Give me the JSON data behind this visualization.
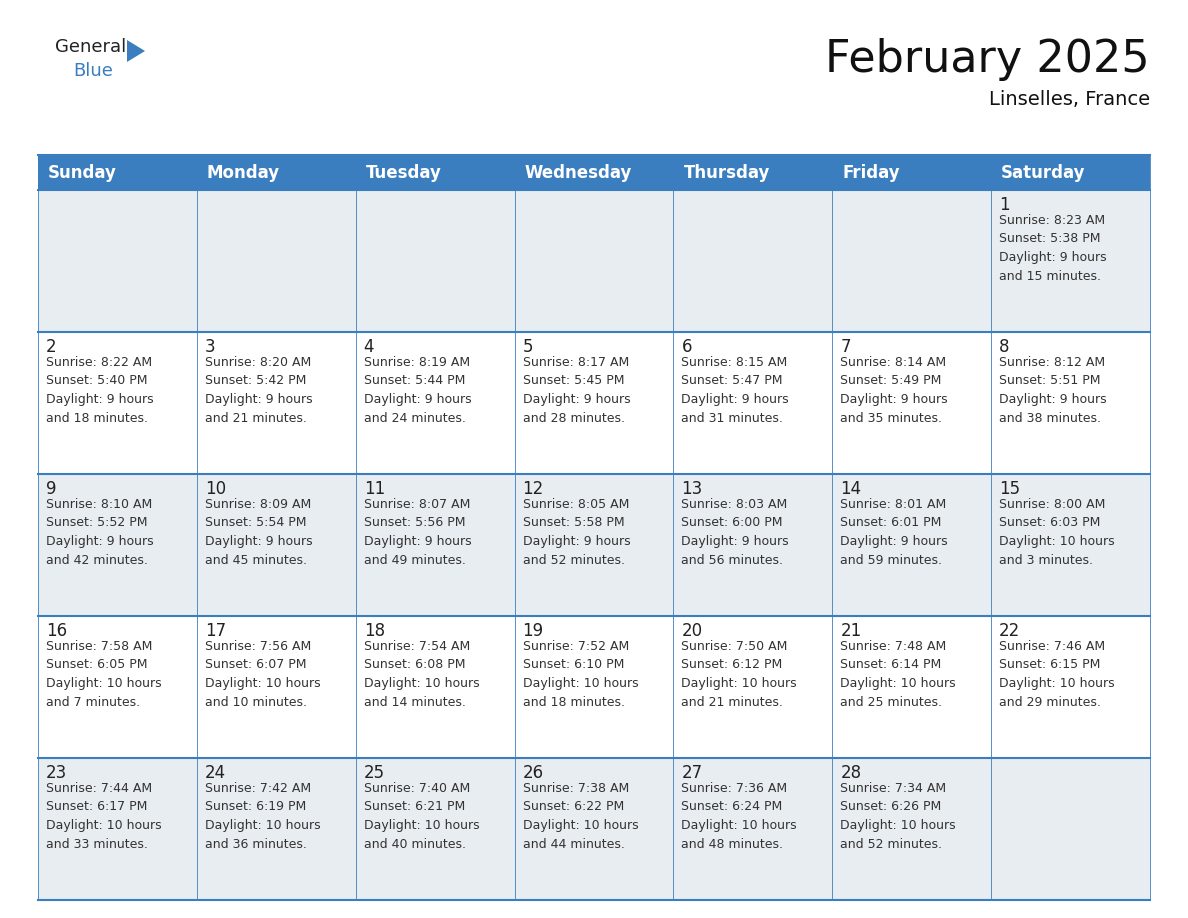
{
  "title": "February 2025",
  "subtitle": "Linselles, France",
  "header_bg": "#3a7ebf",
  "header_text_color": "#ffffff",
  "cell_bg_row0": "#e8edf2",
  "cell_bg_row1": "#ffffff",
  "cell_bg_row2": "#e8edf2",
  "cell_bg_row3": "#ffffff",
  "cell_bg_row4": "#e8edf2",
  "border_color": "#3a7ebf",
  "day_headers": [
    "Sunday",
    "Monday",
    "Tuesday",
    "Wednesday",
    "Thursday",
    "Friday",
    "Saturday"
  ],
  "weeks": [
    [
      {
        "day": null,
        "info": null
      },
      {
        "day": null,
        "info": null
      },
      {
        "day": null,
        "info": null
      },
      {
        "day": null,
        "info": null
      },
      {
        "day": null,
        "info": null
      },
      {
        "day": null,
        "info": null
      },
      {
        "day": 1,
        "info": "Sunrise: 8:23 AM\nSunset: 5:38 PM\nDaylight: 9 hours\nand 15 minutes."
      }
    ],
    [
      {
        "day": 2,
        "info": "Sunrise: 8:22 AM\nSunset: 5:40 PM\nDaylight: 9 hours\nand 18 minutes."
      },
      {
        "day": 3,
        "info": "Sunrise: 8:20 AM\nSunset: 5:42 PM\nDaylight: 9 hours\nand 21 minutes."
      },
      {
        "day": 4,
        "info": "Sunrise: 8:19 AM\nSunset: 5:44 PM\nDaylight: 9 hours\nand 24 minutes."
      },
      {
        "day": 5,
        "info": "Sunrise: 8:17 AM\nSunset: 5:45 PM\nDaylight: 9 hours\nand 28 minutes."
      },
      {
        "day": 6,
        "info": "Sunrise: 8:15 AM\nSunset: 5:47 PM\nDaylight: 9 hours\nand 31 minutes."
      },
      {
        "day": 7,
        "info": "Sunrise: 8:14 AM\nSunset: 5:49 PM\nDaylight: 9 hours\nand 35 minutes."
      },
      {
        "day": 8,
        "info": "Sunrise: 8:12 AM\nSunset: 5:51 PM\nDaylight: 9 hours\nand 38 minutes."
      }
    ],
    [
      {
        "day": 9,
        "info": "Sunrise: 8:10 AM\nSunset: 5:52 PM\nDaylight: 9 hours\nand 42 minutes."
      },
      {
        "day": 10,
        "info": "Sunrise: 8:09 AM\nSunset: 5:54 PM\nDaylight: 9 hours\nand 45 minutes."
      },
      {
        "day": 11,
        "info": "Sunrise: 8:07 AM\nSunset: 5:56 PM\nDaylight: 9 hours\nand 49 minutes."
      },
      {
        "day": 12,
        "info": "Sunrise: 8:05 AM\nSunset: 5:58 PM\nDaylight: 9 hours\nand 52 minutes."
      },
      {
        "day": 13,
        "info": "Sunrise: 8:03 AM\nSunset: 6:00 PM\nDaylight: 9 hours\nand 56 minutes."
      },
      {
        "day": 14,
        "info": "Sunrise: 8:01 AM\nSunset: 6:01 PM\nDaylight: 9 hours\nand 59 minutes."
      },
      {
        "day": 15,
        "info": "Sunrise: 8:00 AM\nSunset: 6:03 PM\nDaylight: 10 hours\nand 3 minutes."
      }
    ],
    [
      {
        "day": 16,
        "info": "Sunrise: 7:58 AM\nSunset: 6:05 PM\nDaylight: 10 hours\nand 7 minutes."
      },
      {
        "day": 17,
        "info": "Sunrise: 7:56 AM\nSunset: 6:07 PM\nDaylight: 10 hours\nand 10 minutes."
      },
      {
        "day": 18,
        "info": "Sunrise: 7:54 AM\nSunset: 6:08 PM\nDaylight: 10 hours\nand 14 minutes."
      },
      {
        "day": 19,
        "info": "Sunrise: 7:52 AM\nSunset: 6:10 PM\nDaylight: 10 hours\nand 18 minutes."
      },
      {
        "day": 20,
        "info": "Sunrise: 7:50 AM\nSunset: 6:12 PM\nDaylight: 10 hours\nand 21 minutes."
      },
      {
        "day": 21,
        "info": "Sunrise: 7:48 AM\nSunset: 6:14 PM\nDaylight: 10 hours\nand 25 minutes."
      },
      {
        "day": 22,
        "info": "Sunrise: 7:46 AM\nSunset: 6:15 PM\nDaylight: 10 hours\nand 29 minutes."
      }
    ],
    [
      {
        "day": 23,
        "info": "Sunrise: 7:44 AM\nSunset: 6:17 PM\nDaylight: 10 hours\nand 33 minutes."
      },
      {
        "day": 24,
        "info": "Sunrise: 7:42 AM\nSunset: 6:19 PM\nDaylight: 10 hours\nand 36 minutes."
      },
      {
        "day": 25,
        "info": "Sunrise: 7:40 AM\nSunset: 6:21 PM\nDaylight: 10 hours\nand 40 minutes."
      },
      {
        "day": 26,
        "info": "Sunrise: 7:38 AM\nSunset: 6:22 PM\nDaylight: 10 hours\nand 44 minutes."
      },
      {
        "day": 27,
        "info": "Sunrise: 7:36 AM\nSunset: 6:24 PM\nDaylight: 10 hours\nand 48 minutes."
      },
      {
        "day": 28,
        "info": "Sunrise: 7:34 AM\nSunset: 6:26 PM\nDaylight: 10 hours\nand 52 minutes."
      },
      {
        "day": null,
        "info": null
      }
    ]
  ],
  "logo_triangle_color": "#3a7ebf",
  "title_fontsize": 32,
  "subtitle_fontsize": 14,
  "header_fontsize": 12,
  "day_num_fontsize": 12,
  "info_fontsize": 9,
  "bg_color": "#ffffff"
}
